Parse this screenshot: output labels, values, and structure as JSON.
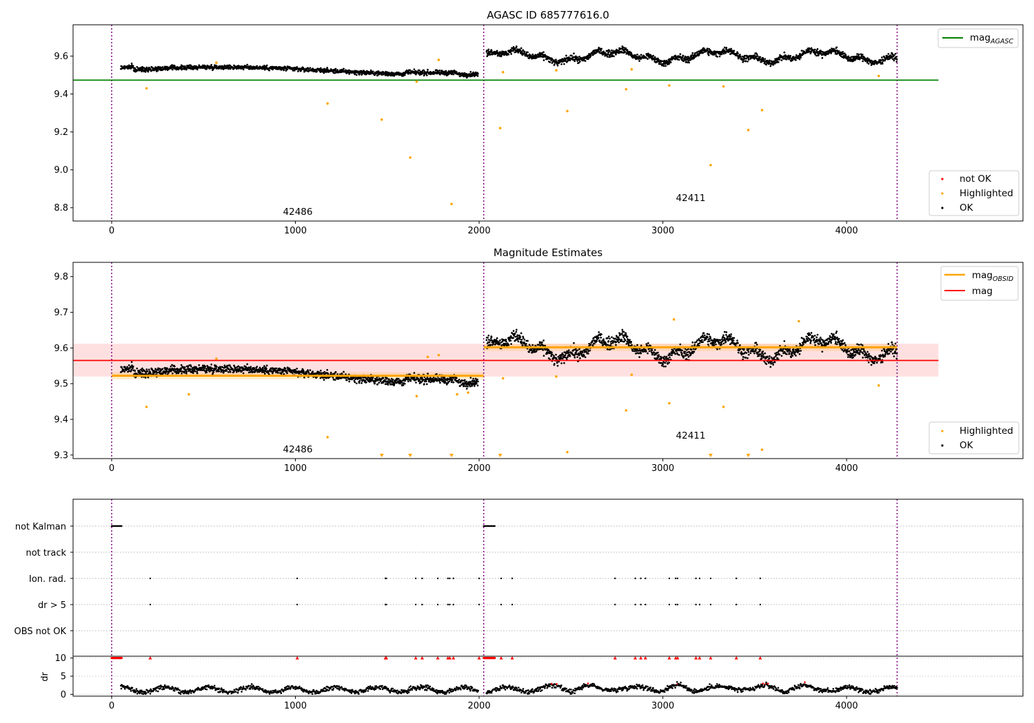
{
  "figure": {
    "panels": [
      {
        "id": "agasc",
        "title": "AGASC ID 685777616.0",
        "x_ticks": [
          "0",
          "1000",
          "2000",
          "3000",
          "4000"
        ],
        "y_ticks": [
          "8.8",
          "9.0",
          "9.2",
          "9.4",
          "9.6"
        ],
        "legend_top": [
          {
            "label": "mag",
            "sub": "AGASC",
            "color": "#008000"
          }
        ],
        "legend_bottom": [
          {
            "label": "not OK",
            "color": "#ff0000"
          },
          {
            "label": "Highlighted",
            "color": "#ffa500"
          },
          {
            "label": "OK",
            "color": "#000000"
          }
        ],
        "obsid_labels": [
          "42486",
          "42411"
        ]
      },
      {
        "id": "estimates",
        "title": "Magnitude Estimates",
        "x_ticks": [
          "0",
          "1000",
          "2000",
          "3000",
          "4000"
        ],
        "y_ticks": [
          "9.3",
          "9.4",
          "9.5",
          "9.6",
          "9.7",
          "9.8"
        ],
        "legend_top": [
          {
            "label": "mag",
            "sub": "OBSID",
            "color": "#ffa500"
          },
          {
            "label": "mag",
            "sub": "",
            "color": "#ff0000"
          }
        ],
        "legend_bottom": [
          {
            "label": "Highlighted",
            "color": "#ffa500"
          },
          {
            "label": "OK",
            "color": "#000000"
          }
        ],
        "obsid_labels": [
          "42486",
          "42411"
        ]
      },
      {
        "id": "flags",
        "y_categories": [
          "not Kalman",
          "not track",
          "Ion. rad.",
          "dr > 5",
          "OBS not OK"
        ],
        "dr_label": "dr",
        "dr_ticks": [
          "10",
          "5",
          "0"
        ],
        "x_ticks": [
          "0",
          "1000",
          "2000",
          "3000",
          "4000"
        ]
      }
    ]
  },
  "chart_data": [
    {
      "type": "scatter",
      "title": "AGASC ID 685777616.0",
      "xlabel": "",
      "ylabel": "",
      "xlim": [
        -210,
        4960
      ],
      "ylim": [
        8.73,
        9.765
      ],
      "obsid_boundaries": [
        0,
        2025,
        4275
      ],
      "obsid_label_positions": [
        [
          1010,
          8.76
        ],
        [
          3150,
          8.84
        ]
      ],
      "mag_agasc": 9.473,
      "mag_agasc_x_range": [
        -210,
        4500
      ],
      "ok_segments": [
        {
          "x": [
            50,
            4275
          ],
          "y": [
            9.525,
            9.6
          ],
          "note_values": {
            "first_obsid_mean": 9.522,
            "second_obsid_mean": 9.6
          }
        }
      ],
      "highlighted_points": {
        "x": [
          190,
          570,
          1175,
          1470,
          1625,
          1660,
          1780,
          1850,
          2115,
          2130,
          2420,
          2480,
          2800,
          2830,
          3035,
          3260,
          3330,
          3465,
          3540,
          4175
        ],
        "y": [
          9.43,
          9.565,
          9.35,
          9.265,
          9.065,
          9.465,
          9.58,
          8.82,
          9.22,
          9.515,
          9.525,
          9.31,
          9.425,
          9.53,
          9.445,
          9.025,
          9.44,
          9.21,
          9.315,
          9.495
        ]
      },
      "grid": false,
      "legend": "top-right (mag AGASC), bottom-right (not OK, Highlighted, OK)"
    },
    {
      "type": "scatter",
      "title": "Magnitude Estimates",
      "xlabel": "",
      "ylabel": "",
      "xlim": [
        -210,
        4960
      ],
      "ylim": [
        9.29,
        9.84
      ],
      "obsid_boundaries": [
        0,
        2025,
        4275
      ],
      "obsid_label_positions": [
        [
          1010,
          9.305
        ],
        [
          3150,
          9.35
        ]
      ],
      "mag_line": 9.565,
      "mag_band": [
        9.52,
        9.612
      ],
      "mag_band_x_range": [
        -210,
        4500
      ],
      "mag_obsid": [
        {
          "x": [
            0,
            2025
          ],
          "y": 9.522
        },
        {
          "x": [
            2025,
            4275
          ],
          "y": 9.602
        }
      ],
      "highlighted_points": {
        "x": [
          190,
          420,
          570,
          1175,
          1470,
          1625,
          1660,
          1720,
          1780,
          1850,
          1880,
          1940,
          2115,
          2130,
          2420,
          2480,
          2800,
          2830,
          3035,
          3060,
          3260,
          3330,
          3465,
          3540,
          3740,
          4175
        ],
        "y": [
          9.435,
          9.47,
          9.57,
          9.35,
          9.295,
          9.295,
          9.465,
          9.575,
          9.58,
          9.295,
          9.47,
          9.475,
          9.295,
          9.515,
          9.52,
          9.308,
          9.425,
          9.525,
          9.445,
          9.68,
          9.295,
          9.435,
          9.295,
          9.315,
          9.675,
          9.495
        ]
      },
      "grid": false,
      "legend": "top-right (mag OBSID, mag), bottom-right (Highlighted, OK)"
    },
    {
      "type": "scatter",
      "title": "",
      "xlim": [
        -210,
        4960
      ],
      "flag_categories": [
        "not Kalman",
        "not track",
        "Ion. rad.",
        "dr > 5",
        "OBS not OK"
      ],
      "not_kalman_x_ranges": [
        [
          0,
          55
        ],
        [
          2025,
          2085
        ]
      ],
      "ion_rad_x": [
        210,
        1010,
        1490,
        1495,
        1655,
        1690,
        1775,
        1830,
        1840,
        1860,
        2000,
        2120,
        2180,
        2740,
        2850,
        2880,
        2905,
        3035,
        3070,
        3080,
        3180,
        3200,
        3260,
        3400,
        3530
      ],
      "dr_gt_5_x": [
        210,
        1010,
        1490,
        1495,
        1655,
        1690,
        1775,
        1830,
        1840,
        1860,
        2000,
        2120,
        2180,
        2740,
        2850,
        2880,
        2905,
        3035,
        3070,
        3080,
        3180,
        3200,
        3260,
        3400,
        3530
      ],
      "dr_ylim": [
        -0.5,
        10.5
      ],
      "dr_cap": 10,
      "dr_typical": [
        0.5,
        2.5
      ]
    }
  ]
}
